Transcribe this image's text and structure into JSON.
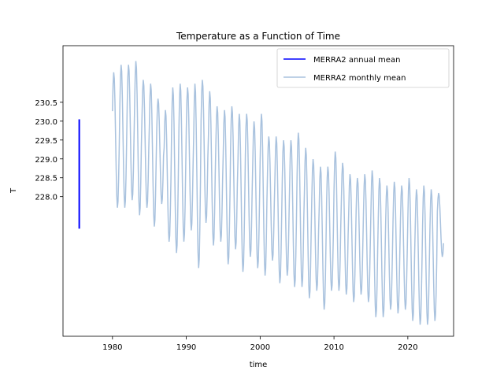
{
  "chart_data": {
    "type": "line",
    "title": "Temperature as a Function of Time",
    "xlabel": "time",
    "ylabel": "T",
    "xlim": [
      1973.3,
      2026.2
    ],
    "ylim": [
      224.3,
      232.0
    ],
    "xticks": [
      1980,
      1990,
      2000,
      2010,
      2020
    ],
    "yticks": [
      228.0,
      228.5,
      229.0,
      229.5,
      230.0,
      230.5
    ],
    "ytick_labels": [
      "228.0",
      "228.5",
      "229.0",
      "229.5",
      "230.0",
      "230.5"
    ],
    "grid": false,
    "legend_position": "top-right",
    "series": [
      {
        "name": "MERRA2 annual mean",
        "color": "#0000ff",
        "x": [
          1975.5,
          1975.5,
          1975.5,
          1975.5,
          1975.5,
          1975.5,
          1975.5,
          1975.5,
          1975.5,
          1975.5
        ],
        "y": [
          230.05,
          229.9,
          229.3,
          228.8,
          228.3,
          227.8,
          227.6,
          227.3,
          227.2,
          227.15
        ]
      },
      {
        "name": "MERRA2 monthly mean",
        "color": "#a9c2de",
        "kind": "seasonal",
        "start": 1980.0,
        "end": 2024.85,
        "years": [
          1980,
          1981,
          1982,
          1983,
          1984,
          1985,
          1986,
          1987,
          1988,
          1989,
          1990,
          1991,
          1992,
          1993,
          1994,
          1995,
          1996,
          1997,
          1998,
          1999,
          2000,
          2001,
          2002,
          2003,
          2004,
          2005,
          2006,
          2007,
          2008,
          2009,
          2010,
          2011,
          2012,
          2013,
          2014,
          2015,
          2016,
          2017,
          2018,
          2019,
          2020,
          2021,
          2022,
          2023,
          2024
        ],
        "peaks": [
          231.3,
          231.5,
          231.5,
          231.6,
          231.1,
          231.0,
          230.6,
          230.3,
          230.9,
          231.0,
          230.9,
          231.0,
          231.1,
          230.8,
          230.4,
          230.3,
          230.4,
          230.2,
          230.2,
          230.0,
          230.2,
          229.6,
          229.6,
          229.5,
          229.5,
          229.7,
          229.3,
          229.0,
          228.8,
          228.8,
          229.2,
          228.9,
          228.6,
          228.5,
          228.6,
          228.7,
          228.5,
          228.3,
          228.4,
          228.3,
          228.5,
          228.2,
          228.3,
          228.2,
          228.1
        ],
        "troughs": [
          227.7,
          227.7,
          227.9,
          227.5,
          227.7,
          227.2,
          227.8,
          226.8,
          226.5,
          226.8,
          227.1,
          226.1,
          227.3,
          226.7,
          226.8,
          226.2,
          226.6,
          226.0,
          226.4,
          226.1,
          225.9,
          226.3,
          225.7,
          225.9,
          225.6,
          225.6,
          225.3,
          225.5,
          225.0,
          225.5,
          225.5,
          225.4,
          225.2,
          225.4,
          225.2,
          224.8,
          224.8,
          225.0,
          224.9,
          225.0,
          224.7,
          224.6,
          224.6,
          224.7,
          226.4
        ]
      }
    ]
  }
}
